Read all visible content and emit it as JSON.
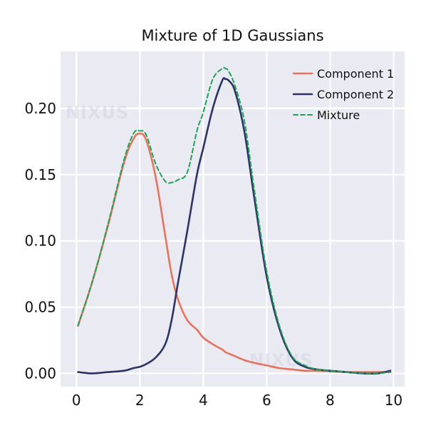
{
  "chart_data": {
    "type": "line",
    "title": "Mixture of 1D Gaussians",
    "xlabel": "",
    "ylabel": "",
    "xlim": [
      -0.5,
      10.35
    ],
    "ylim": [
      -0.01,
      0.243
    ],
    "xticks": [
      0,
      2,
      4,
      6,
      8,
      10
    ],
    "xtick_labels": [
      "0",
      "2",
      "4",
      "6",
      "8",
      "10"
    ],
    "yticks": [
      0.0,
      0.05,
      0.1,
      0.15,
      0.2
    ],
    "ytick_labels": [
      "0.00",
      "0.05",
      "0.10",
      "0.15",
      "0.20"
    ],
    "grid": true,
    "legend": "top-right",
    "x": [
      0.05,
      0.5,
      1.0,
      1.5,
      1.8,
      2.0,
      2.2,
      2.5,
      2.8,
      3.0,
      3.2,
      3.5,
      3.8,
      4.0,
      4.3,
      4.6,
      4.7,
      4.8,
      5.0,
      5.3,
      5.6,
      6.0,
      6.4,
      6.8,
      7.2,
      7.6,
      8.0,
      8.5,
      9.0,
      9.5,
      9.9
    ],
    "series": [
      {
        "name": "Component 1",
        "color": "#e8735b",
        "style": "solid",
        "values": [
          0.036,
          0.069,
          0.112,
          0.159,
          0.177,
          0.181,
          0.176,
          0.148,
          0.104,
          0.075,
          0.056,
          0.04,
          0.033,
          0.027,
          0.022,
          0.018,
          0.016,
          0.015,
          0.013,
          0.01,
          0.008,
          0.006,
          0.004,
          0.003,
          0.002,
          0.002,
          0.0015,
          0.001,
          0.001,
          0.001,
          0.001
        ]
      },
      {
        "name": "Component 2",
        "color": "#2c3366",
        "style": "solid",
        "values": [
          0.001,
          0.0,
          0.001,
          0.002,
          0.004,
          0.005,
          0.007,
          0.012,
          0.022,
          0.04,
          0.068,
          0.108,
          0.15,
          0.17,
          0.2,
          0.221,
          0.222,
          0.221,
          0.213,
          0.182,
          0.134,
          0.073,
          0.034,
          0.012,
          0.005,
          0.003,
          0.002,
          0.001,
          0.0,
          0.0,
          0.002
        ]
      },
      {
        "name": "Mixture",
        "color": "#1aa558",
        "style": "dashed",
        "values": [
          0.036,
          0.069,
          0.113,
          0.161,
          0.181,
          0.183,
          0.18,
          0.158,
          0.145,
          0.144,
          0.146,
          0.152,
          0.183,
          0.197,
          0.222,
          0.23,
          0.23,
          0.228,
          0.217,
          0.19,
          0.14,
          0.077,
          0.036,
          0.013,
          0.006,
          0.003,
          0.002,
          0.001,
          0.0,
          0.0,
          0.001
        ]
      }
    ],
    "watermark": "NIXUS"
  }
}
